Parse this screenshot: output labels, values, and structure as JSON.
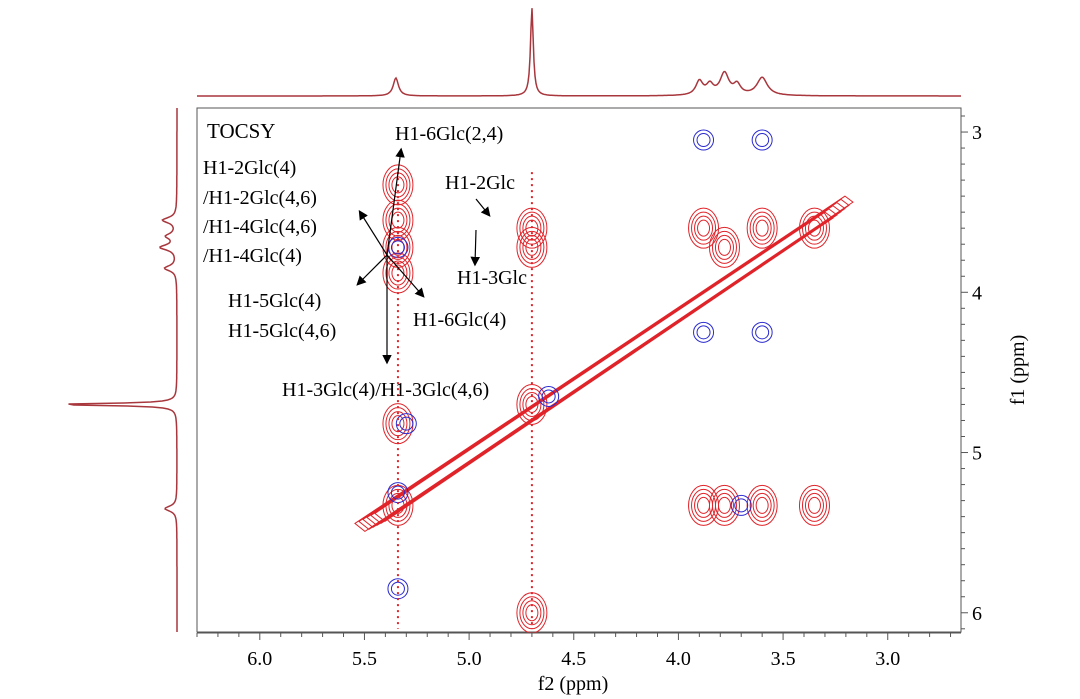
{
  "chart_data": {
    "type": "2d-nmr-contour",
    "experiment": "TOCSY",
    "x_axis": {
      "label": "f2 (ppm)",
      "range": [
        6.3,
        2.65
      ],
      "ticks": [
        "6.0",
        "5.5",
        "5.0",
        "4.5",
        "4.0",
        "3.5",
        "3.0"
      ],
      "tick_values": [
        6.0,
        5.5,
        5.0,
        4.5,
        4.0,
        3.5,
        3.0
      ]
    },
    "y_axis": {
      "label": "f1 (ppm)",
      "range": [
        2.85,
        6.12
      ],
      "ticks": [
        "3",
        "4",
        "5",
        "6"
      ],
      "tick_values": [
        3,
        4,
        5,
        6
      ]
    },
    "projection_peaks_ppm": [
      5.35,
      4.7,
      3.88,
      3.78,
      3.6
    ],
    "annotations": [
      {
        "text": "H1-6Glc(2,4)"
      },
      {
        "text": "H1-2Glc(4)"
      },
      {
        "text": "/H1-2Glc(4,6)"
      },
      {
        "text": "/H1-4Glc(4,6)"
      },
      {
        "text": "/H1-4Glc(4)"
      },
      {
        "text": "H1-2Glc"
      },
      {
        "text": "H1-3Glc"
      },
      {
        "text": "H1-5Glc(4)"
      },
      {
        "text": "H1-5Glc(4,6)"
      },
      {
        "text": "H1-6Glc(4)"
      },
      {
        "text": "H1-3Glc(4)/H1-3Glc(4,6)"
      }
    ],
    "red_peaks": [
      {
        "f2": 5.34,
        "f1": 3.33
      },
      {
        "f2": 5.34,
        "f1": 3.55
      },
      {
        "f2": 5.34,
        "f1": 3.72
      },
      {
        "f2": 5.34,
        "f1": 3.88
      },
      {
        "f2": 5.34,
        "f1": 4.82
      },
      {
        "f2": 5.34,
        "f1": 5.33
      },
      {
        "f2": 4.7,
        "f1": 3.6
      },
      {
        "f2": 4.7,
        "f1": 3.72
      },
      {
        "f2": 4.7,
        "f1": 4.7
      },
      {
        "f2": 4.7,
        "f1": 6.0
      },
      {
        "f2": 3.88,
        "f1": 5.33
      },
      {
        "f2": 3.78,
        "f1": 5.33
      },
      {
        "f2": 3.6,
        "f1": 5.33
      },
      {
        "f2": 3.35,
        "f1": 5.33
      },
      {
        "f2": 3.88,
        "f1": 3.6
      },
      {
        "f2": 3.78,
        "f1": 3.72
      },
      {
        "f2": 3.6,
        "f1": 3.6
      },
      {
        "f2": 3.35,
        "f1": 3.6
      }
    ],
    "blue_peaks": [
      {
        "f2": 5.34,
        "f1": 3.72
      },
      {
        "f2": 5.34,
        "f1": 5.25
      },
      {
        "f2": 5.34,
        "f1": 5.85
      },
      {
        "f2": 5.3,
        "f1": 4.82
      },
      {
        "f2": 3.88,
        "f1": 3.05
      },
      {
        "f2": 3.6,
        "f1": 3.05
      },
      {
        "f2": 3.88,
        "f1": 4.25
      },
      {
        "f2": 3.6,
        "f1": 4.25
      },
      {
        "f2": 3.7,
        "f1": 5.33
      },
      {
        "f2": 4.62,
        "f1": 4.65
      }
    ],
    "colors": {
      "positive": "#e0242a",
      "negative": "#2a2ad0",
      "projection": "#a8373d"
    }
  }
}
